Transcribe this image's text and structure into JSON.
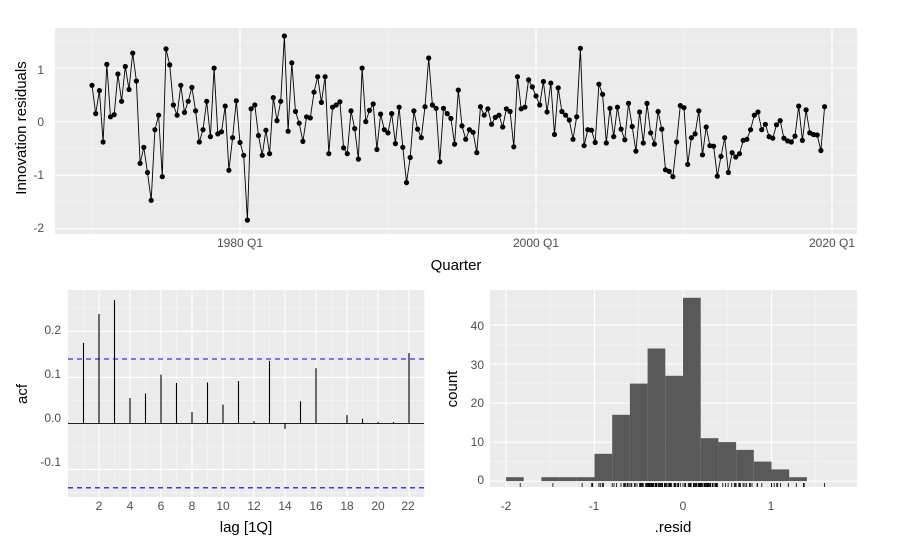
{
  "colors": {
    "panel_bg": "#ebebeb",
    "grid_major": "#ffffff",
    "grid_minor": "#f5f5f5",
    "line": "#000000",
    "bar_fill": "#595959",
    "ci_line": "#0000ff",
    "tick_text": "#4d4d4d"
  },
  "chart_data": [
    {
      "type": "line",
      "title": "",
      "xlabel": "Quarter",
      "ylabel": "Innovation residuals",
      "x_ticks": [
        "1980 Q1",
        "2000 Q1",
        "2020 Q1"
      ],
      "y_ticks": [
        "-2",
        "-1",
        "0",
        "1"
      ],
      "ylim": [
        -2.1,
        1.75
      ],
      "start_quarter": "1970 Q1",
      "markers": true,
      "grid": true,
      "values": [
        0.68,
        0.15,
        0.58,
        -0.38,
        1.07,
        0.09,
        0.13,
        0.89,
        0.38,
        1.03,
        0.6,
        1.28,
        0.76,
        -0.78,
        -0.48,
        -0.95,
        -1.47,
        -0.15,
        0.12,
        -1.03,
        1.36,
        1.06,
        0.31,
        0.12,
        0.68,
        0.17,
        0.38,
        0.64,
        0.2,
        -0.38,
        -0.15,
        0.38,
        -0.28,
        1.0,
        -0.23,
        -0.19,
        0.29,
        -0.91,
        -0.3,
        0.39,
        -0.39,
        -0.63,
        -1.84,
        0.24,
        0.31,
        -0.26,
        -0.63,
        -0.16,
        -0.6,
        0.45,
        0.02,
        0.38,
        1.6,
        -0.18,
        1.1,
        0.19,
        -0.03,
        -0.37,
        0.09,
        0.07,
        0.55,
        0.84,
        0.36,
        0.84,
        -0.6,
        0.27,
        0.31,
        0.37,
        -0.49,
        -0.6,
        0.2,
        -0.13,
        -0.7,
        1.0,
        0.0,
        0.21,
        0.33,
        -0.52,
        0.14,
        -0.15,
        -0.21,
        0.15,
        -0.41,
        0.27,
        -0.48,
        -1.14,
        -0.67,
        0.2,
        -0.14,
        -0.3,
        0.28,
        1.19,
        0.31,
        0.25,
        -0.75,
        0.25,
        0.15,
        0.06,
        -0.42,
        0.59,
        -0.08,
        -0.33,
        -0.15,
        -0.2,
        -0.58,
        0.28,
        0.12,
        0.24,
        -0.05,
        0.08,
        0.12,
        -0.1,
        0.24,
        0.19,
        -0.47,
        0.84,
        0.24,
        0.27,
        0.78,
        0.65,
        0.48,
        0.31,
        0.75,
        0.18,
        0.72,
        -0.24,
        0.63,
        0.19,
        0.12,
        0.03,
        -0.33,
        0.09,
        1.37,
        -0.45,
        -0.15,
        -0.16,
        -0.39,
        0.7,
        0.51,
        -0.4,
        0.25,
        -0.28,
        0.27,
        -0.14,
        -0.34,
        0.34,
        -0.09,
        -0.55,
        0.18,
        -0.4,
        0.34,
        -0.21,
        -0.42,
        0.19,
        -0.14,
        -0.9,
        -0.93,
        -1.03,
        -0.38,
        0.3,
        0.26,
        -0.8,
        -0.3,
        -0.23,
        0.2,
        -0.62,
        -0.1,
        -0.45,
        -0.46,
        -1.02,
        -0.65,
        -0.3,
        -0.95,
        -0.58,
        -0.66,
        -0.6,
        -0.35,
        -0.33,
        -0.15,
        0.12,
        0.18,
        -0.15,
        -0.05,
        -0.28,
        -0.31,
        -0.06,
        0.02,
        -0.31,
        -0.36,
        -0.38,
        -0.27,
        0.29,
        -0.35,
        0.22,
        -0.21,
        -0.24,
        -0.25,
        -0.54,
        0.28
      ]
    },
    {
      "type": "bar",
      "title": "",
      "xlabel": "lag [1Q]",
      "ylabel": "acf",
      "lags": [
        1,
        2,
        3,
        4,
        5,
        6,
        7,
        8,
        9,
        10,
        11,
        12,
        13,
        14,
        15,
        16,
        17,
        18,
        19,
        20,
        21,
        22
      ],
      "values": [
        0.175,
        0.238,
        0.268,
        0.055,
        0.065,
        0.106,
        0.088,
        0.025,
        0.089,
        0.041,
        0.092,
        0.005,
        0.136,
        -0.012,
        0.048,
        0.12,
        0.0,
        0.018,
        0.01,
        0.003,
        0.003,
        0.153
      ],
      "ci": 0.14,
      "x_ticks": [
        "2",
        "4",
        "6",
        "8",
        "10",
        "12",
        "14",
        "16",
        "18",
        "20",
        "22"
      ],
      "y_ticks": [
        "-0.1",
        "0.0",
        "0.1",
        "0.2"
      ],
      "ylim": [
        -0.16,
        0.29
      ],
      "grid": true
    },
    {
      "type": "bar",
      "title": "",
      "xlabel": ".resid",
      "ylabel": "count",
      "bin_width": 0.2,
      "bin_centers": [
        -1.9,
        -1.7,
        -1.5,
        -1.3,
        -1.1,
        -0.9,
        -0.7,
        -0.5,
        -0.3,
        -0.1,
        0.1,
        0.3,
        0.5,
        0.7,
        0.9,
        1.1,
        1.3,
        1.5
      ],
      "values": [
        1,
        0,
        1,
        1,
        1,
        7,
        17,
        25,
        34,
        27,
        47,
        11,
        10,
        8,
        5,
        3,
        1,
        0
      ],
      "x_ticks": [
        "-2",
        "-1",
        "0",
        "1"
      ],
      "y_ticks": [
        "0",
        "10",
        "20",
        "30",
        "40"
      ],
      "ylim": [
        -1.5,
        49
      ],
      "rug": true,
      "grid": true
    }
  ]
}
